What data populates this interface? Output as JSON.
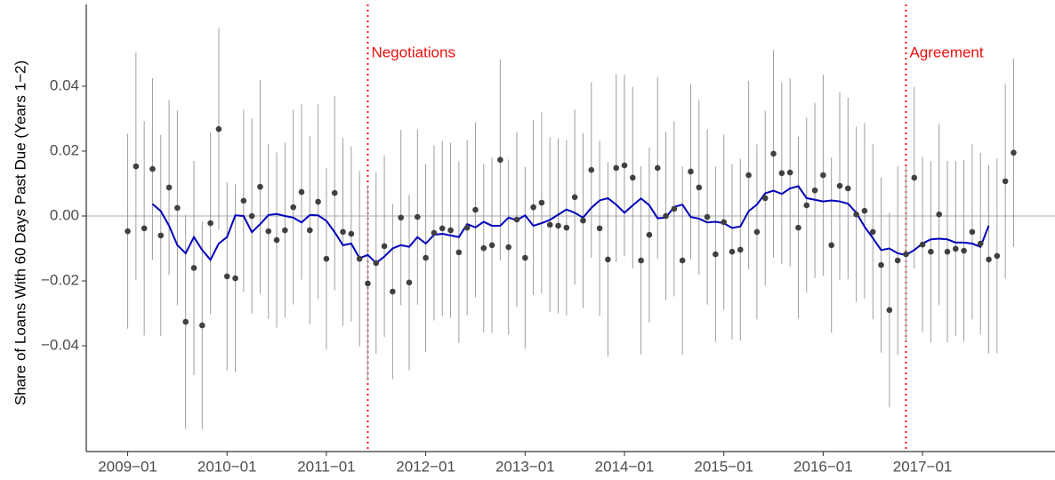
{
  "chart_data": {
    "type": "scatter",
    "y_label": "Share of Loans With 60 Days Past Due (Years 1−2)",
    "x": [
      "2009-01",
      "2009-02",
      "2009-03",
      "2009-04",
      "2009-05",
      "2009-06",
      "2009-07",
      "2009-08",
      "2009-09",
      "2009-10",
      "2009-11",
      "2009-12",
      "2010-01",
      "2010-02",
      "2010-03",
      "2010-04",
      "2010-05",
      "2010-06",
      "2010-07",
      "2010-08",
      "2010-09",
      "2010-10",
      "2010-11",
      "2010-12",
      "2011-01",
      "2011-02",
      "2011-03",
      "2011-04",
      "2011-05",
      "2011-06",
      "2011-07",
      "2011-08",
      "2011-09",
      "2011-10",
      "2011-11",
      "2011-12",
      "2012-01",
      "2012-02",
      "2012-03",
      "2012-04",
      "2012-05",
      "2012-06",
      "2012-07",
      "2012-08",
      "2012-09",
      "2012-10",
      "2012-11",
      "2012-12",
      "2013-01",
      "2013-02",
      "2013-03",
      "2013-04",
      "2013-05",
      "2013-06",
      "2013-07",
      "2013-08",
      "2013-09",
      "2013-10",
      "2013-11",
      "2013-12",
      "2014-01",
      "2014-02",
      "2014-03",
      "2014-04",
      "2014-05",
      "2014-06",
      "2014-07",
      "2014-08",
      "2014-09",
      "2014-10",
      "2014-11",
      "2014-12",
      "2015-01",
      "2015-02",
      "2015-03",
      "2015-04",
      "2015-05",
      "2015-06",
      "2015-07",
      "2015-08",
      "2015-09",
      "2015-10",
      "2015-11",
      "2015-12",
      "2016-01",
      "2016-02",
      "2016-03",
      "2016-04",
      "2016-05",
      "2016-06",
      "2016-07",
      "2016-08",
      "2016-09",
      "2016-10",
      "2016-11",
      "2016-12",
      "2017-01",
      "2017-02",
      "2017-03",
      "2017-04",
      "2017-05",
      "2017-06",
      "2017-07",
      "2017-08",
      "2017-09",
      "2017-10",
      "2017-11",
      "2017-12"
    ],
    "values": [
      -0.0047,
      0.0153,
      -0.0038,
      0.0145,
      -0.006,
      0.0088,
      0.0025,
      -0.0326,
      -0.016,
      -0.0337,
      -0.0022,
      0.0268,
      -0.0186,
      -0.0192,
      0.0047,
      0.0,
      0.009,
      -0.0047,
      -0.0074,
      -0.0044,
      0.0027,
      0.0074,
      -0.0044,
      0.0044,
      -0.0132,
      0.0071,
      -0.0049,
      -0.0055,
      -0.0132,
      -0.0208,
      -0.0145,
      -0.0093,
      -0.0233,
      -0.0005,
      -0.0205,
      -0.0003,
      -0.0129,
      -0.0052,
      -0.0038,
      -0.0044,
      -0.0112,
      -0.0036,
      0.0019,
      -0.0099,
      -0.009,
      0.0173,
      -0.0096,
      -0.0011,
      -0.0129,
      0.0027,
      0.0041,
      -0.0027,
      -0.003,
      -0.0036,
      0.0058,
      -0.0014,
      0.0142,
      -0.0038,
      -0.0134,
      0.0148,
      0.0156,
      0.0118,
      -0.0137,
      -0.0058,
      0.0148,
      0.0,
      0.0022,
      -0.0137,
      0.0137,
      0.0088,
      -0.0003,
      -0.0118,
      -0.0019,
      -0.011,
      -0.0104,
      0.0126,
      -0.0049,
      0.0055,
      0.0192,
      0.0132,
      0.0134,
      -0.0036,
      0.0033,
      0.0079,
      0.0126,
      -0.009,
      0.0093,
      0.0085,
      0.0005,
      0.0016,
      -0.0049,
      -0.0151,
      -0.029,
      -0.0137,
      -0.0118,
      0.0118,
      -0.0088,
      -0.011,
      0.0005,
      -0.011,
      -0.0101,
      -0.0107,
      -0.0049,
      -0.0085,
      -0.0134,
      -0.0123,
      0.0107,
      0.0195
    ],
    "errors": [
      0.03,
      0.035,
      0.033,
      0.028,
      0.031,
      0.027,
      0.03,
      0.033,
      0.033,
      0.032,
      0.028,
      0.031,
      0.029,
      0.029,
      0.028,
      0.03,
      0.033,
      0.027,
      0.027,
      0.027,
      0.03,
      0.027,
      0.029,
      0.03,
      0.028,
      0.03,
      0.029,
      0.027,
      0.027,
      0.03,
      0.028,
      0.028,
      0.027,
      0.027,
      0.027,
      0.027,
      0.029,
      0.027,
      0.027,
      0.027,
      0.028,
      0.027,
      0.027,
      0.026,
      0.027,
      0.031,
      0.027,
      0.027,
      0.028,
      0.027,
      0.028,
      0.027,
      0.027,
      0.027,
      0.027,
      0.027,
      0.027,
      0.027,
      0.03,
      0.029,
      0.028,
      0.028,
      0.029,
      0.027,
      0.028,
      0.026,
      0.027,
      0.029,
      0.027,
      0.027,
      0.027,
      0.027,
      0.027,
      0.027,
      0.028,
      0.029,
      0.027,
      0.027,
      0.032,
      0.028,
      0.029,
      0.028,
      0.027,
      0.027,
      0.031,
      0.027,
      0.029,
      0.028,
      0.027,
      0.027,
      0.027,
      0.027,
      0.03,
      0.029,
      0.027,
      0.028,
      0.027,
      0.028,
      0.028,
      0.028,
      0.027,
      0.028,
      0.027,
      0.028,
      0.029,
      0.03,
      0.03,
      0.029
    ],
    "moving_average": [
      null,
      null,
      null,
      0.0037,
      0.0015,
      -0.003,
      -0.009,
      -0.0115,
      -0.0065,
      -0.0105,
      -0.0135,
      -0.0085,
      -0.0065,
      0.0002,
      0.0,
      -0.005,
      -0.0025,
      0.0003,
      0.0006,
      0.0,
      -0.0005,
      -0.002,
      0.0003,
      0.0002,
      -0.0015,
      -0.005,
      -0.009,
      -0.0085,
      -0.013,
      -0.012,
      -0.0145,
      -0.0125,
      -0.01,
      -0.009,
      -0.0095,
      -0.0065,
      -0.0085,
      -0.0058,
      -0.0055,
      -0.006,
      -0.0065,
      -0.0025,
      -0.0035,
      -0.0018,
      -0.003,
      -0.003,
      -0.0005,
      -0.0013,
      0.0002,
      -0.003,
      -0.0022,
      -0.0012,
      0.0004,
      0.002,
      0.001,
      -0.0005,
      0.0025,
      0.0048,
      0.0055,
      0.0035,
      0.001,
      0.0033,
      0.0054,
      0.0033,
      -0.0007,
      -0.0005,
      0.0028,
      0.0035,
      -0.0003,
      -0.0008,
      -0.002,
      -0.0018,
      -0.0022,
      -0.0037,
      -0.0032,
      0.0015,
      0.0035,
      0.007,
      0.0078,
      0.0068,
      0.0085,
      0.0092,
      0.0055,
      0.005,
      0.0045,
      0.0048,
      0.0045,
      0.0038,
      0.001,
      -0.0033,
      -0.0068,
      -0.0105,
      -0.01,
      -0.0115,
      -0.012,
      -0.0105,
      -0.0085,
      -0.0072,
      -0.007,
      -0.0072,
      -0.0082,
      -0.0082,
      -0.0085,
      -0.0095,
      -0.003,
      null,
      null,
      null
    ],
    "point_color": "#404040",
    "error_color": "#9e9e9e",
    "line_color": "#0000bb",
    "reference_line": 0,
    "reference_color": "#bdbdbd",
    "annotations": [
      {
        "x": "2011-06",
        "label": "Negotiations"
      },
      {
        "x": "2016-11",
        "label": "Agreement"
      }
    ],
    "annotation_color": "#ee1111",
    "xlim": [
      "2008-08",
      "2018-05"
    ],
    "xticks": [
      {
        "value": "2009-01",
        "label": "2009−01"
      },
      {
        "value": "2010-01",
        "label": "2010−01"
      },
      {
        "value": "2011-01",
        "label": "2011−01"
      },
      {
        "value": "2012-01",
        "label": "2012−01"
      },
      {
        "value": "2013-01",
        "label": "2013−01"
      },
      {
        "value": "2014-01",
        "label": "2014−01"
      },
      {
        "value": "2015-01",
        "label": "2015−01"
      },
      {
        "value": "2016-01",
        "label": "2016−01"
      },
      {
        "value": "2017-01",
        "label": "2017−01"
      }
    ],
    "ylim": [
      -0.0726,
      0.0652
    ],
    "yticks": [
      {
        "value": -0.04,
        "label": "−0.04"
      },
      {
        "value": -0.02,
        "label": "−0.02"
      },
      {
        "value": 0,
        "label": "0.00"
      },
      0.02,
      0.04
    ]
  }
}
